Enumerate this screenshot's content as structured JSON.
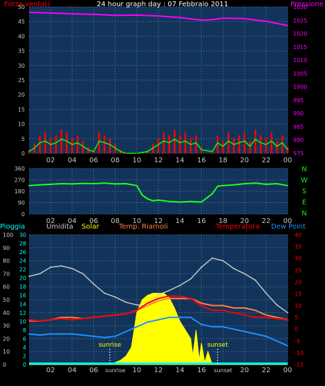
{
  "colors": {
    "background": "#000000",
    "plot_bg": "#12345a",
    "grid": "#3a5f86",
    "axis_tick": "#c8c8c8",
    "wind_gust": "#ff0000",
    "wind_avg": "#00ff00",
    "pressure": "#ff00ff",
    "direction": "#22ff22",
    "humidity": "#c8c8c8",
    "solar": "#ffff00",
    "temp_riarnoli": "#ff8040",
    "temperature": "#ff0000",
    "dew_point": "#1e90ff",
    "rain_axis": "#00ffff",
    "compass": "#00ff00",
    "rain_bar": "#00ffff"
  },
  "chart_data": [
    {
      "type": "line",
      "title": "24 hour graph day : 07 Febbraio 2011",
      "left_label": "Forza vento()",
      "right_label": "Pressione",
      "x_ticks": [
        "02",
        "04",
        "06",
        "08",
        "10",
        "12",
        "14",
        "16",
        "18",
        "20",
        "22",
        "00"
      ],
      "x_range_hours": [
        0,
        24
      ],
      "ylim_left": [
        0,
        50
      ],
      "yticks_left": [
        0,
        5,
        10,
        15,
        20,
        25,
        30,
        35,
        40,
        45,
        50
      ],
      "ylim_right": [
        975,
        1030
      ],
      "yticks_right": [
        975,
        980,
        985,
        990,
        995,
        1000,
        1005,
        1010,
        1015,
        1020,
        1025,
        1030
      ],
      "grid": true,
      "series": [
        {
          "name": "Pressione",
          "axis": "right",
          "x": [
            0,
            2,
            4,
            6,
            8,
            10,
            12,
            14,
            16,
            17,
            18,
            20,
            22,
            24
          ],
          "values": [
            1028,
            1027.7,
            1027.4,
            1027.2,
            1026.8,
            1026.9,
            1026.6,
            1026.0,
            1025.0,
            1025.2,
            1025.8,
            1025.6,
            1024.6,
            1023.0
          ]
        },
        {
          "name": "Forza vento",
          "axis": "left",
          "x": [
            0,
            0.5,
            1,
            1.5,
            2,
            2.5,
            3,
            3.5,
            4,
            4.5,
            5,
            5.5,
            6,
            6.5,
            7,
            7.5,
            8,
            8.5,
            9,
            10,
            11,
            11.5,
            12,
            12.5,
            13,
            13.5,
            14,
            14.5,
            15,
            15.5,
            16,
            17,
            17.5,
            18,
            18.5,
            19,
            19.5,
            20,
            20.5,
            21,
            21.5,
            22,
            22.5,
            23,
            23.5,
            24
          ],
          "values": [
            1,
            3,
            6,
            7,
            5,
            6,
            8,
            7,
            5,
            6,
            4,
            2,
            1,
            7,
            6,
            5,
            3,
            1,
            0,
            0,
            1,
            3,
            5,
            7,
            6,
            8,
            6,
            7,
            5,
            6,
            2,
            1,
            6,
            4,
            7,
            5,
            6,
            7,
            4,
            8,
            6,
            5,
            7,
            4,
            6,
            2
          ]
        }
      ]
    },
    {
      "type": "line",
      "title": "",
      "x_ticks": [
        "02",
        "04",
        "06",
        "08",
        "10",
        "12",
        "14",
        "16",
        "18",
        "20",
        "22",
        "00"
      ],
      "x_range_hours": [
        0,
        24
      ],
      "ylim": [
        0,
        360
      ],
      "yticks": [
        0,
        90,
        180,
        270,
        360
      ],
      "compass_labels": [
        "N",
        "W",
        "S",
        "E",
        "N"
      ],
      "grid": true,
      "series": [
        {
          "name": "",
          "x": [
            0,
            1,
            2,
            3,
            4,
            5,
            6,
            7,
            8,
            9,
            10,
            10.5,
            11,
            11.5,
            12,
            13,
            14,
            15,
            16,
            17,
            17.5,
            18,
            19,
            20,
            21,
            22,
            23,
            24
          ],
          "values": [
            225,
            230,
            235,
            240,
            238,
            242,
            240,
            245,
            238,
            240,
            225,
            150,
            120,
            105,
            110,
            100,
            95,
            100,
            95,
            160,
            220,
            225,
            230,
            240,
            245,
            235,
            240,
            225
          ]
        }
      ]
    },
    {
      "type": "line",
      "title": "",
      "legend": [
        "Pioggia",
        "Umidita",
        "Solar",
        "Temp. Riarnoli",
        "Temperatura",
        "Dew Point"
      ],
      "x_ticks": [
        "02",
        "04",
        "06",
        "sunrise",
        "10",
        "12",
        "14",
        "16",
        "sunset",
        "20",
        "22",
        "00"
      ],
      "x_range_hours": [
        0,
        24
      ],
      "ylim_humidity": [
        0,
        100
      ],
      "yticks_humidity": [
        0,
        10,
        20,
        30,
        40,
        50,
        60,
        70,
        80,
        90,
        100
      ],
      "ylim_rain": [
        0,
        30
      ],
      "yticks_rain": [
        0,
        2,
        4,
        6,
        8,
        10,
        12,
        14,
        16,
        18,
        20,
        22,
        24,
        26,
        28,
        30
      ],
      "ylim_temp": [
        -15,
        40
      ],
      "yticks_temp": [
        -15,
        -10,
        -5,
        0,
        5,
        10,
        15,
        20,
        25,
        30,
        35,
        40
      ],
      "annotations": [
        {
          "text": "sunrise",
          "x": 7.5
        },
        {
          "text": "sunset",
          "x": 17.5
        }
      ],
      "grid": true,
      "series": [
        {
          "name": "Umidita",
          "axis": "humidity",
          "x": [
            0,
            1,
            2,
            3,
            4,
            5,
            6,
            7,
            8,
            9,
            10,
            11,
            12,
            13,
            14,
            15,
            16,
            17,
            18,
            19,
            20,
            21,
            22,
            23,
            24
          ],
          "values": [
            68,
            70,
            75,
            76,
            74,
            70,
            62,
            55,
            52,
            48,
            46,
            45,
            54,
            57,
            61,
            66,
            75,
            82,
            80,
            74,
            70,
            65,
            55,
            46,
            40
          ]
        },
        {
          "name": "Temperatura",
          "axis": "temp",
          "x": [
            0,
            1,
            2,
            3,
            4,
            5,
            6,
            7,
            8,
            9,
            10,
            11,
            12,
            13,
            14,
            15,
            16,
            17,
            18,
            19,
            20,
            21,
            22,
            23,
            24
          ],
          "values": [
            4,
            3.5,
            4,
            4.5,
            4,
            4.5,
            5,
            5.5,
            6,
            6.5,
            8,
            11,
            13,
            14,
            14,
            13,
            10,
            8,
            8,
            7,
            6,
            5,
            5,
            4.5,
            4
          ]
        },
        {
          "name": "Temp. Riarnoli",
          "axis": "temp",
          "x": [
            0,
            1,
            2,
            3,
            4,
            5,
            6,
            7,
            8,
            9,
            10,
            11,
            12,
            13,
            14,
            15,
            16,
            17,
            18,
            19,
            20,
            21,
            22,
            23,
            24
          ],
          "values": [
            3.5,
            3.5,
            4,
            5,
            5,
            4.5,
            5,
            5.5,
            6,
            6.5,
            8,
            10,
            12,
            13,
            13,
            13,
            11,
            10,
            10,
            9,
            9,
            8,
            6,
            5,
            4
          ]
        },
        {
          "name": "Dew Point",
          "axis": "temp",
          "x": [
            0,
            1,
            2,
            3,
            4,
            5,
            6,
            7,
            8,
            9,
            10,
            11,
            12,
            13,
            14,
            15,
            16,
            17,
            18,
            19,
            20,
            21,
            22,
            23,
            24
          ],
          "values": [
            -2,
            -2.5,
            -2,
            -2,
            -2,
            -2.5,
            -3,
            -3.5,
            -3,
            -1,
            1,
            3,
            4,
            5,
            5,
            5,
            2,
            1,
            1,
            0,
            -1,
            -2,
            -3,
            -5,
            -7
          ]
        },
        {
          "name": "Solar",
          "axis": "rain",
          "x": [
            0,
            7,
            7.5,
            8,
            8.5,
            9,
            9.5,
            10,
            10.5,
            11,
            11.5,
            12,
            12.5,
            13,
            13.5,
            14,
            14.5,
            15,
            15.2,
            15.5,
            15.8,
            16,
            16.3,
            16.6,
            17,
            17.5,
            24
          ],
          "values": [
            0,
            0,
            0,
            0.5,
            1,
            2,
            4,
            12,
            15,
            16,
            16.5,
            16.5,
            16.5,
            15.5,
            13,
            10,
            8,
            6,
            2,
            8,
            1,
            5,
            0.5,
            3,
            0,
            0,
            0
          ]
        },
        {
          "name": "Pioggia",
          "axis": "rain",
          "x": [
            0,
            24
          ],
          "values": [
            0,
            0
          ]
        }
      ]
    }
  ]
}
